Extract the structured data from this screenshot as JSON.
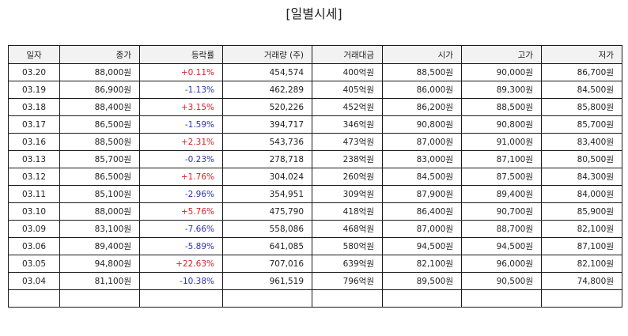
{
  "page": {
    "title": "[일별시세]"
  },
  "colors": {
    "up": "#d8202a",
    "down": "#2a32b5",
    "header_bg": "#f2f2f2"
  },
  "table": {
    "columns": [
      "일자",
      "종가",
      "등락률",
      "거래량 (주)",
      "거래대금",
      "시가",
      "고가",
      "저가"
    ],
    "rows": [
      {
        "date": "03.20",
        "close": "88,000원",
        "change": "+0.11%",
        "dir": "up",
        "volume": "454,574",
        "amount": "400억원",
        "open": "88,500원",
        "high": "90,000원",
        "low": "86,700원"
      },
      {
        "date": "03.19",
        "close": "86,900원",
        "change": "-1.13%",
        "dir": "down",
        "volume": "462,289",
        "amount": "405억원",
        "open": "86,000원",
        "high": "89,300원",
        "low": "84,500원"
      },
      {
        "date": "03.18",
        "close": "88,400원",
        "change": "+3.15%",
        "dir": "up",
        "volume": "520,226",
        "amount": "452억원",
        "open": "86,200원",
        "high": "88,500원",
        "low": "85,800원"
      },
      {
        "date": "03.17",
        "close": "86,500원",
        "change": "-1.59%",
        "dir": "down",
        "volume": "394,717",
        "amount": "346억원",
        "open": "90,800원",
        "high": "90,800원",
        "low": "85,700원"
      },
      {
        "date": "03.16",
        "close": "88,500원",
        "change": "+2.31%",
        "dir": "up",
        "volume": "543,736",
        "amount": "473억원",
        "open": "87,000원",
        "high": "91,000원",
        "low": "83,400원"
      },
      {
        "date": "03.13",
        "close": "85,700원",
        "change": "-0.23%",
        "dir": "down",
        "volume": "278,718",
        "amount": "238억원",
        "open": "83,000원",
        "high": "87,100원",
        "low": "80,500원"
      },
      {
        "date": "03.12",
        "close": "86,500원",
        "change": "+1.76%",
        "dir": "up",
        "volume": "304,024",
        "amount": "260억원",
        "open": "84,500원",
        "high": "87,500원",
        "low": "84,300원"
      },
      {
        "date": "03.11",
        "close": "85,100원",
        "change": "-2.96%",
        "dir": "down",
        "volume": "354,951",
        "amount": "309억원",
        "open": "87,900원",
        "high": "89,400원",
        "low": "84,000원"
      },
      {
        "date": "03.10",
        "close": "88,000원",
        "change": "+5.76%",
        "dir": "up",
        "volume": "475,790",
        "amount": "418억원",
        "open": "86,400원",
        "high": "90,700원",
        "low": "85,900원"
      },
      {
        "date": "03.09",
        "close": "83,100원",
        "change": "-7.66%",
        "dir": "down",
        "volume": "558,086",
        "amount": "468억원",
        "open": "87,000원",
        "high": "88,700원",
        "low": "82,100원"
      },
      {
        "date": "03.06",
        "close": "89,400원",
        "change": "-5.89%",
        "dir": "down",
        "volume": "641,085",
        "amount": "580억원",
        "open": "94,500원",
        "high": "94,500원",
        "low": "87,100원"
      },
      {
        "date": "03.05",
        "close": "94,800원",
        "change": "+22.63%",
        "dir": "up",
        "volume": "707,016",
        "amount": "639억원",
        "open": "82,100원",
        "high": "96,000원",
        "low": "82,100원"
      },
      {
        "date": "03.04",
        "close": "81,100원",
        "change": "-10.38%",
        "dir": "down",
        "volume": "961,519",
        "amount": "796억원",
        "open": "89,500원",
        "high": "90,500원",
        "low": "74,800원"
      },
      {
        "date": "",
        "close": "",
        "change": "",
        "dir": "",
        "volume": "",
        "amount": "",
        "open": "",
        "high": "",
        "low": ""
      }
    ]
  }
}
